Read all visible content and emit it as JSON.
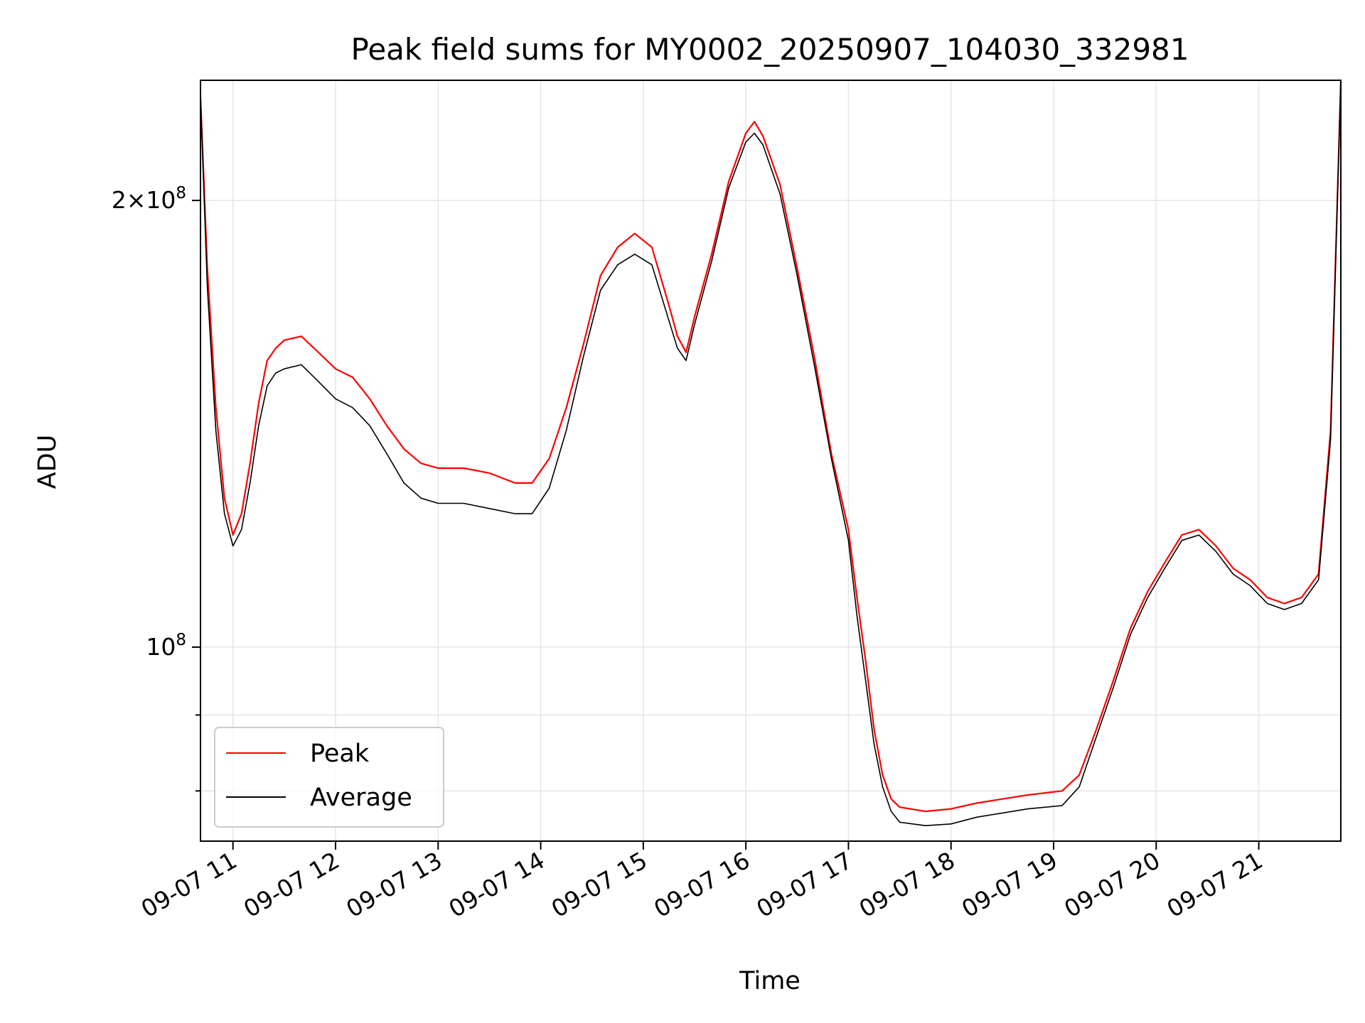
{
  "chart_data": {
    "type": "line",
    "title": "Peak field sums for MY0002_20250907_104030_332981",
    "xlabel": "Time",
    "ylabel": "ADU",
    "y_scale": "log",
    "x_range": [
      "2025-09-07 10:41",
      "2025-09-07 21:48"
    ],
    "ylim": [
      74000000,
      241000000
    ],
    "grid": true,
    "legend_position": "lower-left",
    "x_ticks": [
      "09-07 11",
      "09-07 12",
      "09-07 13",
      "09-07 14",
      "09-07 15",
      "09-07 16",
      "09-07 17",
      "09-07 18",
      "09-07 19",
      "09-07 20",
      "09-07 21"
    ],
    "y_ticks": [
      {
        "value": 200000000,
        "base": "2×10",
        "exp": "8"
      },
      {
        "value": 100000000,
        "base": "10",
        "exp": "8"
      }
    ],
    "y_minor_ticks": [
      80000000,
      90000000
    ],
    "series": [
      {
        "name": "Peak",
        "color": "#ff0000",
        "points": [
          [
            "10:41",
            235
          ],
          [
            "10:45",
            180
          ],
          [
            "10:50",
            145
          ],
          [
            "10:55",
            126
          ],
          [
            "11:00",
            119
          ],
          [
            "11:05",
            123
          ],
          [
            "11:10",
            133
          ],
          [
            "11:15",
            146
          ],
          [
            "11:20",
            156
          ],
          [
            "11:25",
            159
          ],
          [
            "11:30",
            161
          ],
          [
            "11:40",
            162
          ],
          [
            "11:50",
            158
          ],
          [
            "12:00",
            154
          ],
          [
            "12:10",
            152
          ],
          [
            "12:20",
            147
          ],
          [
            "12:30",
            141
          ],
          [
            "12:40",
            136
          ],
          [
            "12:50",
            133
          ],
          [
            "13:00",
            132
          ],
          [
            "13:15",
            132
          ],
          [
            "13:30",
            131
          ],
          [
            "13:45",
            129
          ],
          [
            "13:55",
            129
          ],
          [
            "14:05",
            134
          ],
          [
            "14:15",
            145
          ],
          [
            "14:25",
            160
          ],
          [
            "14:35",
            178
          ],
          [
            "14:45",
            186
          ],
          [
            "14:55",
            190
          ],
          [
            "15:05",
            186
          ],
          [
            "15:15",
            170
          ],
          [
            "15:20",
            162
          ],
          [
            "15:25",
            158
          ],
          [
            "15:30",
            167
          ],
          [
            "15:40",
            184
          ],
          [
            "15:50",
            206
          ],
          [
            "16:00",
            222
          ],
          [
            "16:05",
            226
          ],
          [
            "16:10",
            221
          ],
          [
            "16:20",
            205
          ],
          [
            "16:30",
            180
          ],
          [
            "16:40",
            157
          ],
          [
            "16:50",
            135
          ],
          [
            "17:00",
            120
          ],
          [
            "17:05",
            108
          ],
          [
            "17:10",
            98
          ],
          [
            "17:15",
            88
          ],
          [
            "17:20",
            82
          ],
          [
            "17:25",
            79
          ],
          [
            "17:30",
            78
          ],
          [
            "17:45",
            77.5
          ],
          [
            "18:00",
            77.8
          ],
          [
            "18:15",
            78.5
          ],
          [
            "18:30",
            79
          ],
          [
            "18:45",
            79.5
          ],
          [
            "19:05",
            80
          ],
          [
            "19:15",
            82
          ],
          [
            "19:25",
            88
          ],
          [
            "19:35",
            95
          ],
          [
            "19:45",
            103
          ],
          [
            "19:55",
            109
          ],
          [
            "20:05",
            114
          ],
          [
            "20:15",
            119
          ],
          [
            "20:25",
            120
          ],
          [
            "20:35",
            117
          ],
          [
            "20:45",
            113
          ],
          [
            "20:55",
            111
          ],
          [
            "21:05",
            108
          ],
          [
            "21:15",
            107
          ],
          [
            "21:25",
            108
          ],
          [
            "21:35",
            112
          ],
          [
            "21:42",
            140
          ],
          [
            "21:48",
            241
          ]
        ]
      },
      {
        "name": "Average",
        "color": "#000000",
        "points": [
          [
            "10:41",
            235
          ],
          [
            "10:45",
            175
          ],
          [
            "10:50",
            140
          ],
          [
            "10:55",
            123
          ],
          [
            "11:00",
            117
          ],
          [
            "11:05",
            120
          ],
          [
            "11:10",
            129
          ],
          [
            "11:15",
            141
          ],
          [
            "11:20",
            150
          ],
          [
            "11:25",
            153
          ],
          [
            "11:30",
            154
          ],
          [
            "11:40",
            155
          ],
          [
            "11:50",
            151
          ],
          [
            "12:00",
            147
          ],
          [
            "12:10",
            145
          ],
          [
            "12:20",
            141
          ],
          [
            "12:30",
            135
          ],
          [
            "12:40",
            129
          ],
          [
            "12:50",
            126
          ],
          [
            "13:00",
            125
          ],
          [
            "13:15",
            125
          ],
          [
            "13:30",
            124
          ],
          [
            "13:45",
            123
          ],
          [
            "13:55",
            123
          ],
          [
            "14:05",
            128
          ],
          [
            "14:15",
            140
          ],
          [
            "14:25",
            157
          ],
          [
            "14:35",
            174
          ],
          [
            "14:45",
            181
          ],
          [
            "14:55",
            184
          ],
          [
            "15:05",
            181
          ],
          [
            "15:15",
            166
          ],
          [
            "15:20",
            159
          ],
          [
            "15:25",
            156
          ],
          [
            "15:30",
            165
          ],
          [
            "15:40",
            182
          ],
          [
            "15:50",
            204
          ],
          [
            "16:00",
            219
          ],
          [
            "16:05",
            222
          ],
          [
            "16:10",
            218
          ],
          [
            "16:20",
            202
          ],
          [
            "16:30",
            178
          ],
          [
            "16:40",
            155
          ],
          [
            "16:50",
            134
          ],
          [
            "17:00",
            118
          ],
          [
            "17:05",
            105
          ],
          [
            "17:10",
            95
          ],
          [
            "17:15",
            86
          ],
          [
            "17:20",
            80.5
          ],
          [
            "17:25",
            77.5
          ],
          [
            "17:30",
            76.2
          ],
          [
            "17:45",
            75.8
          ],
          [
            "18:00",
            76
          ],
          [
            "18:15",
            76.8
          ],
          [
            "18:30",
            77.3
          ],
          [
            "18:45",
            77.8
          ],
          [
            "19:05",
            78.2
          ],
          [
            "19:15",
            80.5
          ],
          [
            "19:25",
            87
          ],
          [
            "19:35",
            94
          ],
          [
            "19:45",
            102
          ],
          [
            "19:55",
            108
          ],
          [
            "20:05",
            113
          ],
          [
            "20:15",
            118
          ],
          [
            "20:25",
            119
          ],
          [
            "20:35",
            116
          ],
          [
            "20:45",
            112
          ],
          [
            "20:55",
            110
          ],
          [
            "21:05",
            107
          ],
          [
            "21:15",
            106
          ],
          [
            "21:25",
            107
          ],
          [
            "21:35",
            111
          ],
          [
            "21:42",
            138
          ],
          [
            "21:48",
            241
          ]
        ]
      }
    ],
    "y_unit_multiplier": 1000000
  }
}
